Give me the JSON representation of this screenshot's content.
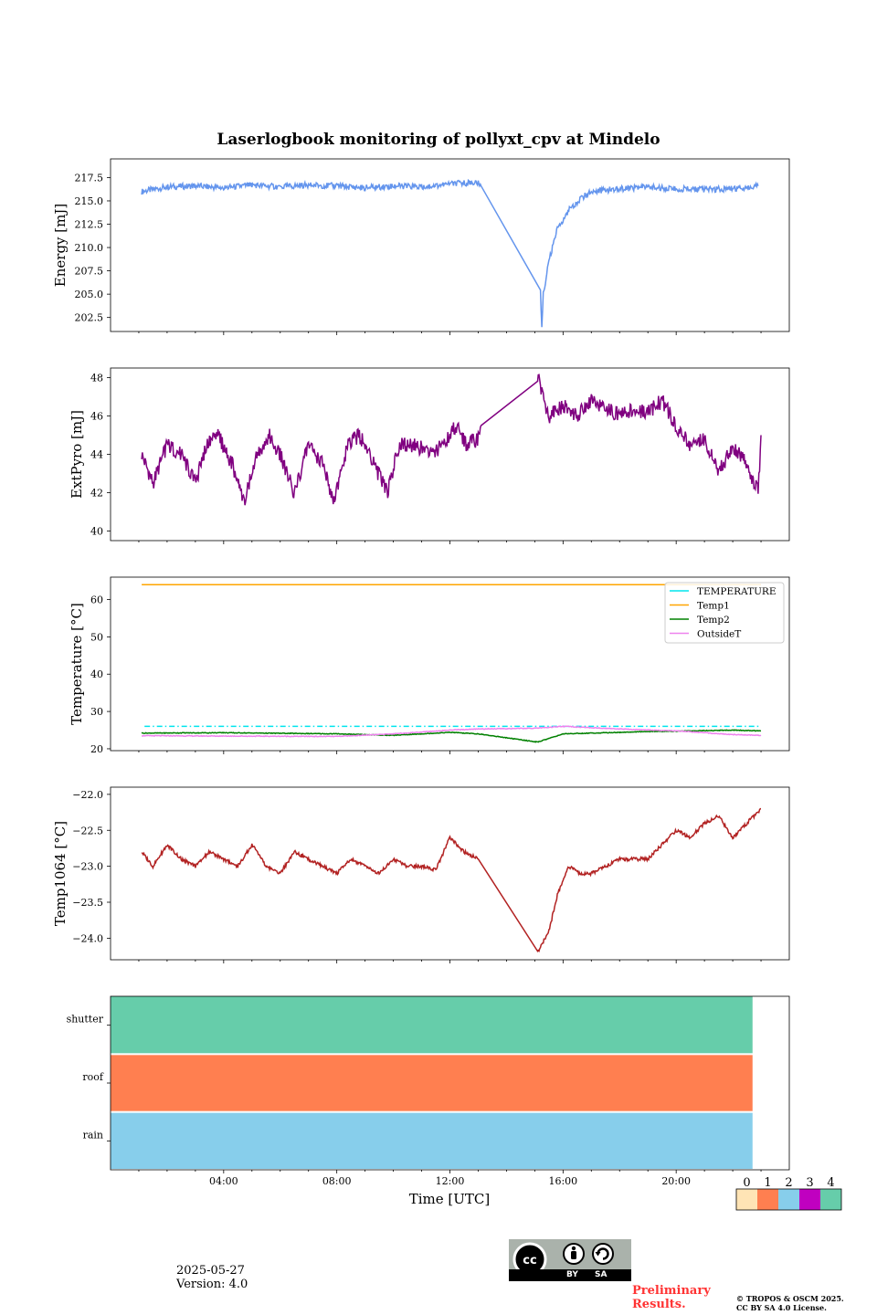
{
  "figure": {
    "title": "Laserlogbook monitoring of pollyxt_cpv at Mindelo",
    "xlabel": "Time [UTC]",
    "xticks": [
      "04:00",
      "08:00",
      "12:00",
      "16:00",
      "20:00"
    ]
  },
  "footer": {
    "date": "2025-05-27",
    "version": "Version: 4.0",
    "preliminary_line1": "Preliminary",
    "preliminary_line2": "Results.",
    "copyright_line1": "© TROPOS & OSCM 2025.",
    "copyright_line2": "CC BY SA 4.0 License.",
    "license_badge": {
      "cc": "cc",
      "by": "BY",
      "sa": "SA"
    }
  },
  "chart_data": [
    {
      "type": "line",
      "ylabel": "Energy [mJ]",
      "ylim": [
        201.0,
        219.5
      ],
      "yticks": [
        "202.5",
        "205.0",
        "207.5",
        "210.0",
        "212.5",
        "215.0",
        "217.5"
      ],
      "xlim_hours": [
        0,
        24
      ],
      "color": "#6495ED",
      "series": [
        {
          "points": [
            [
              1.1,
              216.0
            ],
            [
              2.0,
              216.5
            ],
            [
              3.0,
              216.6
            ],
            [
              4.0,
              216.4
            ],
            [
              5.0,
              216.7
            ],
            [
              6.0,
              216.5
            ],
            [
              7.0,
              216.7
            ],
            [
              8.0,
              216.6
            ],
            [
              9.0,
              216.4
            ],
            [
              10.0,
              216.6
            ],
            [
              11.0,
              216.5
            ],
            [
              12.0,
              216.8
            ],
            [
              12.95,
              217.0
            ],
            [
              13.1,
              216.6
            ],
            [
              15.2,
              205.5
            ],
            [
              15.25,
              201.5
            ],
            [
              15.3,
              205.0
            ],
            [
              15.5,
              208.5
            ],
            [
              15.8,
              212.0
            ],
            [
              16.2,
              214.0
            ],
            [
              16.6,
              215.2
            ],
            [
              17.0,
              216.0
            ],
            [
              18.0,
              216.3
            ],
            [
              19.0,
              216.5
            ],
            [
              20.0,
              216.3
            ],
            [
              21.0,
              216.2
            ],
            [
              22.0,
              216.3
            ],
            [
              22.9,
              216.6
            ]
          ]
        }
      ]
    },
    {
      "type": "line",
      "ylabel": "ExtPyro [mJ]",
      "ylim": [
        39.5,
        48.5
      ],
      "yticks": [
        "40",
        "42",
        "44",
        "46",
        "48"
      ],
      "xlim_hours": [
        0,
        24
      ],
      "color": "#800080",
      "series": [
        {
          "points": [
            [
              1.1,
              44.0
            ],
            [
              1.5,
              42.5
            ],
            [
              2.0,
              44.5
            ],
            [
              2.5,
              44.0
            ],
            [
              3.0,
              42.5
            ],
            [
              3.4,
              44.5
            ],
            [
              3.8,
              45.0
            ],
            [
              4.3,
              43.5
            ],
            [
              4.7,
              41.5
            ],
            [
              5.2,
              44.0
            ],
            [
              5.6,
              45.0
            ],
            [
              6.0,
              44.0
            ],
            [
              6.5,
              42.0
            ],
            [
              7.0,
              44.5
            ],
            [
              7.5,
              43.5
            ],
            [
              7.9,
              41.5
            ],
            [
              8.4,
              44.5
            ],
            [
              8.8,
              45.0
            ],
            [
              9.3,
              43.5
            ],
            [
              9.8,
              42.0
            ],
            [
              10.2,
              44.5
            ],
            [
              10.8,
              44.5
            ],
            [
              11.3,
              44.0
            ],
            [
              11.8,
              44.5
            ],
            [
              12.2,
              45.5
            ],
            [
              12.6,
              44.5
            ],
            [
              13.0,
              44.8
            ],
            [
              13.1,
              45.5
            ],
            [
              15.1,
              48.0
            ],
            [
              15.5,
              46.0
            ],
            [
              16.0,
              46.5
            ],
            [
              16.5,
              46.0
            ],
            [
              17.0,
              46.8
            ],
            [
              17.5,
              46.5
            ],
            [
              18.0,
              46.0
            ],
            [
              18.5,
              46.3
            ],
            [
              19.0,
              46.2
            ],
            [
              19.5,
              46.8
            ],
            [
              20.0,
              45.5
            ],
            [
              20.5,
              44.5
            ],
            [
              21.0,
              44.8
            ],
            [
              21.5,
              43.0
            ],
            [
              22.0,
              44.5
            ],
            [
              22.5,
              43.5
            ],
            [
              22.9,
              42.0
            ],
            [
              23.0,
              45.0
            ]
          ]
        }
      ]
    },
    {
      "type": "line",
      "ylabel": "Temperature [°C]",
      "ylim": [
        19.5,
        66
      ],
      "yticks": [
        "20",
        "30",
        "40",
        "50",
        "60"
      ],
      "xlim_hours": [
        0,
        24
      ],
      "legend": "upper right",
      "series": [
        {
          "name": "TEMPERATURE",
          "color": "#00E5EE",
          "style": "dashdot",
          "points": [
            [
              1.2,
              26.0
            ],
            [
              12.0,
              26.0
            ],
            [
              15.0,
              26.0
            ],
            [
              23.0,
              26.0
            ]
          ]
        },
        {
          "name": "Temp1",
          "color": "#FFA500",
          "points": [
            [
              1.1,
              64.0
            ],
            [
              23.0,
              64.0
            ]
          ]
        },
        {
          "name": "Temp2",
          "color": "#008000",
          "points": [
            [
              1.1,
              24.2
            ],
            [
              4.0,
              24.3
            ],
            [
              8.0,
              24.0
            ],
            [
              10.0,
              23.6
            ],
            [
              12.0,
              24.4
            ],
            [
              13.0,
              24.0
            ],
            [
              15.1,
              21.8
            ],
            [
              16.0,
              24.0
            ],
            [
              19.0,
              24.6
            ],
            [
              22.0,
              25.0
            ],
            [
              23.0,
              24.8
            ]
          ]
        },
        {
          "name": "OutsideT",
          "color": "#EE82EE",
          "points": [
            [
              1.1,
              23.5
            ],
            [
              4.0,
              23.4
            ],
            [
              8.0,
              23.3
            ],
            [
              10.0,
              24.0
            ],
            [
              12.0,
              25.0
            ],
            [
              13.0,
              25.3
            ],
            [
              15.0,
              25.5
            ],
            [
              16.0,
              26.0
            ],
            [
              18.0,
              25.3
            ],
            [
              20.0,
              24.8
            ],
            [
              22.0,
              23.8
            ],
            [
              23.0,
              23.6
            ]
          ]
        }
      ]
    },
    {
      "type": "line",
      "ylabel": "Temp1064 [°C]",
      "ylim": [
        -24.3,
        -21.9
      ],
      "yticks": [
        "−24.0",
        "−23.5",
        "−23.0",
        "−22.5",
        "−22.0"
      ],
      "xlim_hours": [
        0,
        24
      ],
      "color": "#B22222",
      "series": [
        {
          "points": [
            [
              1.1,
              -22.8
            ],
            [
              1.5,
              -23.0
            ],
            [
              2.0,
              -22.7
            ],
            [
              2.5,
              -22.9
            ],
            [
              3.0,
              -23.0
            ],
            [
              3.5,
              -22.8
            ],
            [
              4.0,
              -22.9
            ],
            [
              4.5,
              -23.0
            ],
            [
              5.0,
              -22.7
            ],
            [
              5.5,
              -23.0
            ],
            [
              6.0,
              -23.1
            ],
            [
              6.5,
              -22.8
            ],
            [
              7.0,
              -22.9
            ],
            [
              7.5,
              -23.0
            ],
            [
              8.0,
              -23.1
            ],
            [
              8.5,
              -22.9
            ],
            [
              9.0,
              -23.0
            ],
            [
              9.5,
              -23.1
            ],
            [
              10.0,
              -22.9
            ],
            [
              10.5,
              -23.0
            ],
            [
              11.0,
              -23.0
            ],
            [
              11.5,
              -23.05
            ],
            [
              12.0,
              -22.6
            ],
            [
              12.5,
              -22.8
            ],
            [
              13.0,
              -22.9
            ],
            [
              15.1,
              -24.2
            ],
            [
              15.5,
              -23.9
            ],
            [
              15.8,
              -23.4
            ],
            [
              16.2,
              -23.0
            ],
            [
              16.6,
              -23.1
            ],
            [
              17.0,
              -23.1
            ],
            [
              17.5,
              -23.0
            ],
            [
              18.0,
              -22.9
            ],
            [
              18.5,
              -22.9
            ],
            [
              19.0,
              -22.9
            ],
            [
              19.5,
              -22.7
            ],
            [
              20.0,
              -22.5
            ],
            [
              20.5,
              -22.6
            ],
            [
              21.0,
              -22.4
            ],
            [
              21.5,
              -22.3
            ],
            [
              22.0,
              -22.6
            ],
            [
              22.5,
              -22.4
            ],
            [
              23.0,
              -22.2
            ]
          ]
        }
      ]
    },
    {
      "type": "heatmap",
      "rows": [
        "shutter",
        "roof",
        "rain"
      ],
      "xlim_hours": [
        0,
        24
      ],
      "filled_until_hours": 22.7,
      "row_colors": [
        "#66CDAA",
        "#FF7F50",
        "#87CEEB"
      ],
      "colorbar": {
        "labels": [
          "0",
          "1",
          "2",
          "3",
          "4"
        ],
        "colors": [
          "#FFE4B5",
          "#FF7F50",
          "#87CEEB",
          "#C000C0",
          "#66CDAA"
        ]
      }
    }
  ]
}
